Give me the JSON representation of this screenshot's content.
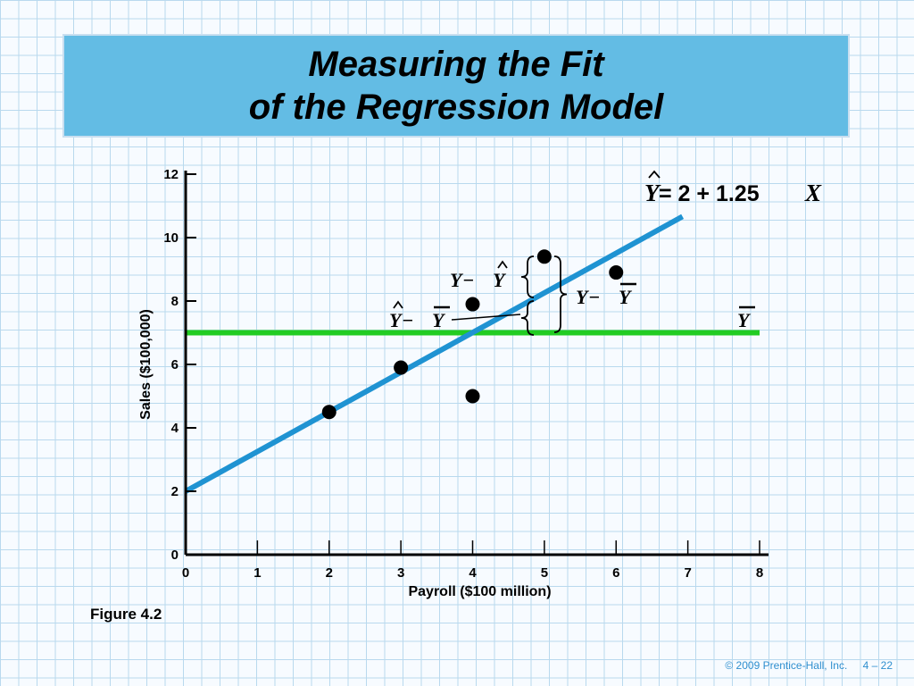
{
  "slide": {
    "title_line1": "Measuring the Fit",
    "title_line2": "of the Regression Model",
    "figure_label": "Figure 4.2",
    "footer_copyright": "© 2009 Prentice-Hall, Inc.",
    "footer_page": "4 – 22"
  },
  "colors": {
    "title_bg": "#63bce4",
    "regression_line": "#1f93d2",
    "mean_line": "#22cc22",
    "points": "#000000",
    "grid": "#b9d9ee"
  },
  "chart_data": {
    "type": "scatter",
    "title": "",
    "xlabel": "Payroll ($100 million)",
    "ylabel": "Sales ($100,000)",
    "xlim": [
      0,
      8
    ],
    "ylim": [
      0,
      12
    ],
    "x_ticks": [
      "0",
      "1",
      "2",
      "3",
      "4",
      "5",
      "6",
      "7",
      "8"
    ],
    "y_ticks": [
      "0",
      "2",
      "4",
      "6",
      "8",
      "10",
      "12"
    ],
    "points": [
      {
        "x": 2,
        "y": 4.5
      },
      {
        "x": 3,
        "y": 5.9
      },
      {
        "x": 4,
        "y": 7.9
      },
      {
        "x": 4,
        "y": 5
      },
      {
        "x": 5,
        "y": 9.4
      },
      {
        "x": 6,
        "y": 8.9
      }
    ],
    "regression_line": {
      "intercept": 2,
      "slope": 1.25,
      "x_range": [
        0,
        7
      ]
    },
    "mean_line": {
      "y": 7,
      "x_range": [
        0,
        8
      ]
    },
    "annotations": {
      "equation_rhs": " = 2 + 1.25",
      "equation_x": "X",
      "y_hat": "Y",
      "y_bar": "Y",
      "minus": " − ",
      "y": "Y"
    }
  }
}
